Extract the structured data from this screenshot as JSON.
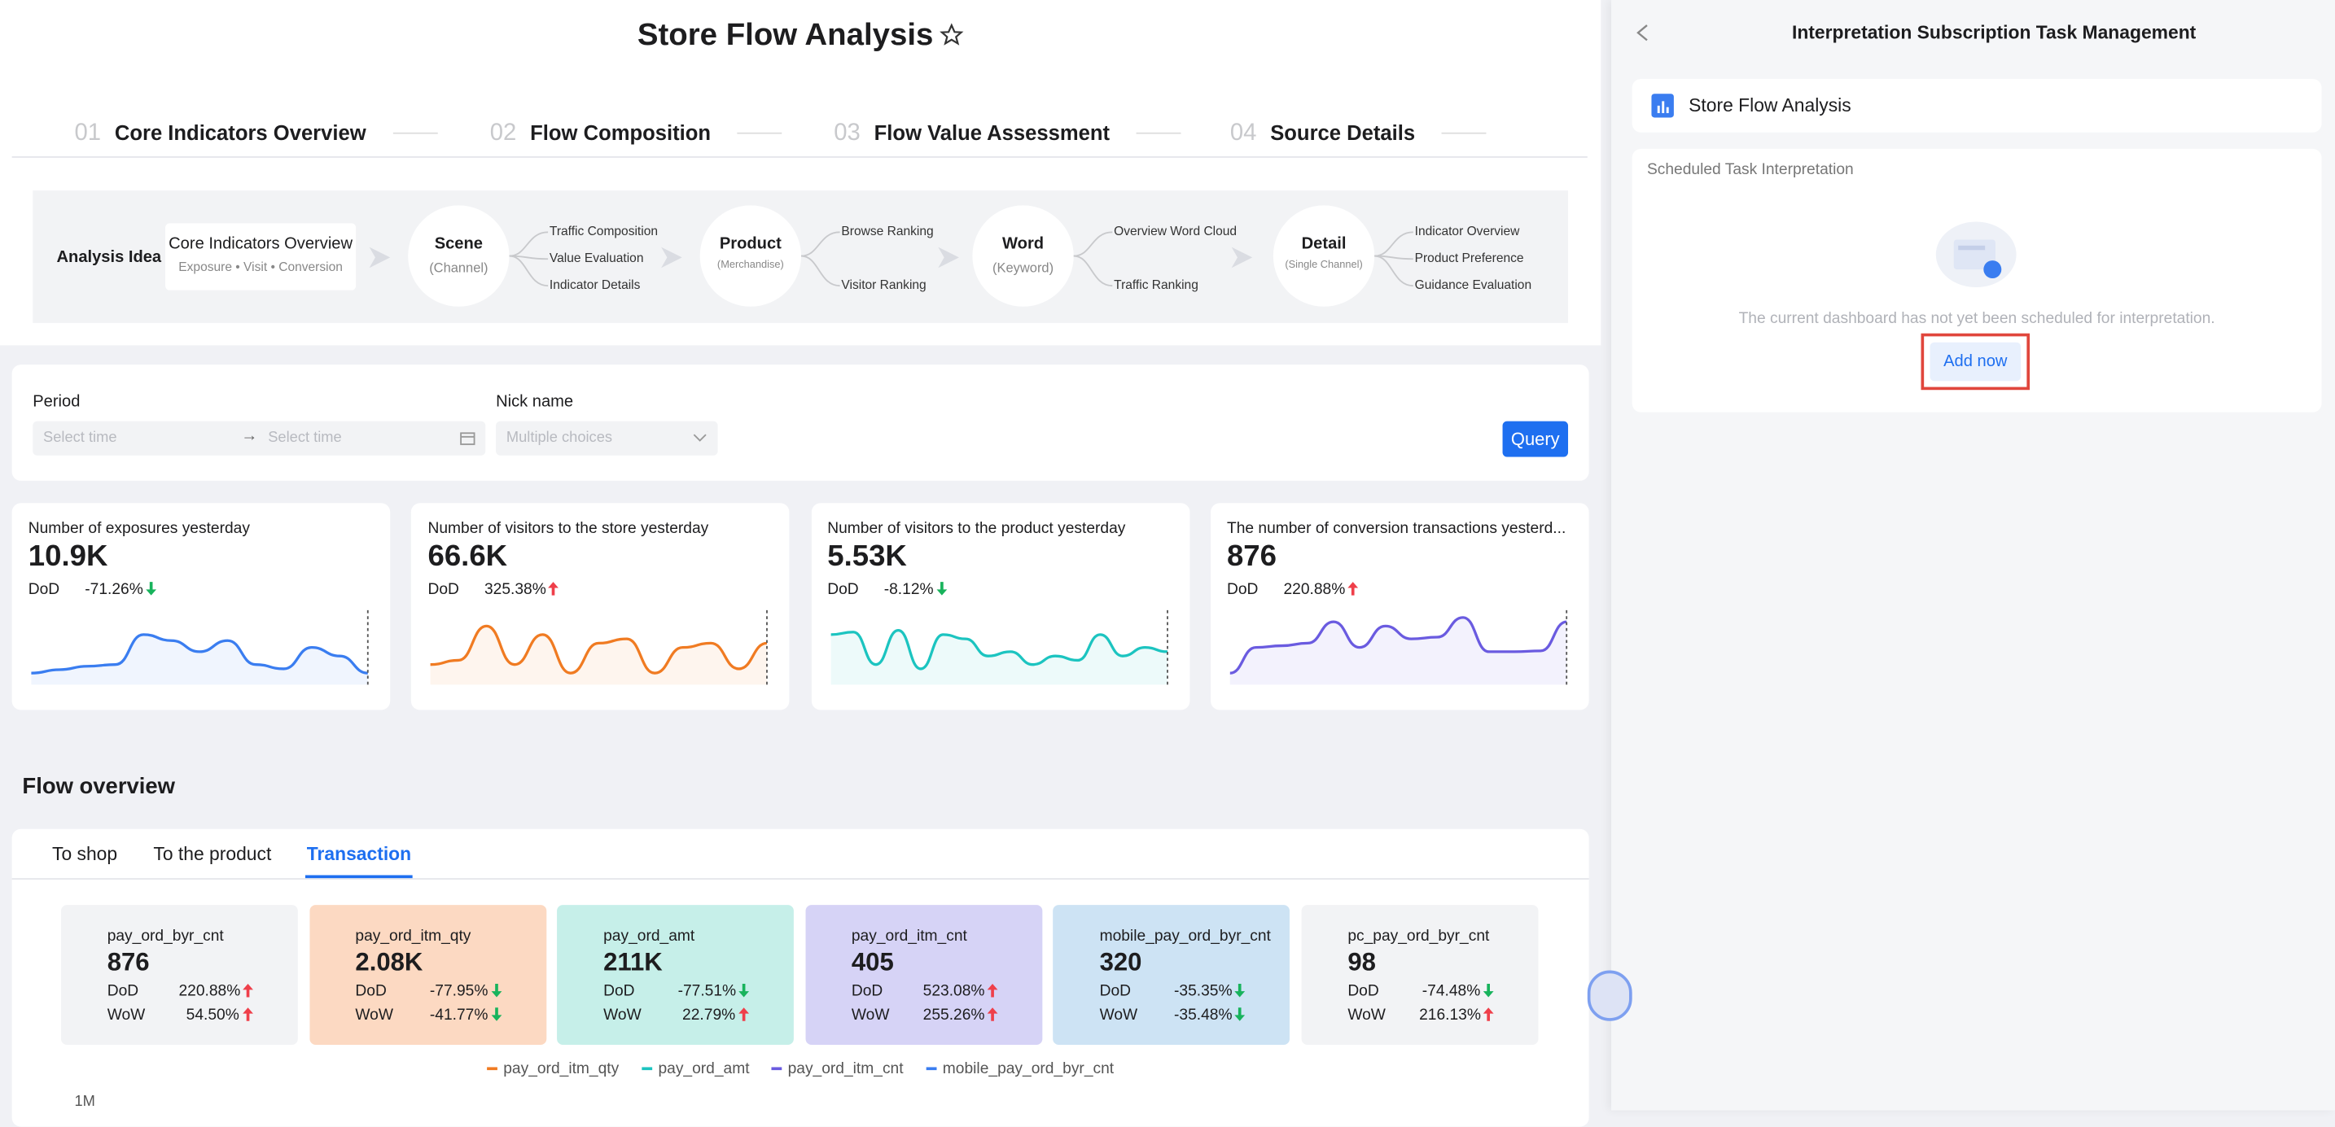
{
  "header": {
    "title": "Store Flow Analysis"
  },
  "steps": [
    {
      "num": "01",
      "label": "Core Indicators Overview"
    },
    {
      "num": "02",
      "label": "Flow Composition"
    },
    {
      "num": "03",
      "label": "Flow Value Assessment"
    },
    {
      "num": "04",
      "label": "Source Details"
    }
  ],
  "analysis": {
    "label": "Analysis Idea",
    "overview": {
      "title": "Core Indicators Overview",
      "sub": "Exposure • Visit • Conversion"
    },
    "nodes": [
      {
        "title": "Scene",
        "sub": "(Channel)",
        "items": [
          "Traffic Composition",
          "Value Evaluation",
          "Indicator Details"
        ]
      },
      {
        "title": "Product",
        "sub": "(Merchandise)",
        "items": [
          "Browse Ranking",
          "Visitor Ranking"
        ]
      },
      {
        "title": "Word",
        "sub": "(Keyword)",
        "items": [
          "Overview Word Cloud",
          "Traffic Ranking"
        ]
      },
      {
        "title": "Detail",
        "sub": "(Single Channel)",
        "items": [
          "Indicator Overview",
          "Product Preference",
          "Guidance Evaluation"
        ]
      }
    ]
  },
  "filters": {
    "period": {
      "label": "Period",
      "start": "Select time",
      "end": "Select time"
    },
    "nick": {
      "label": "Nick name",
      "placeholder": "Multiple choices"
    },
    "query": "Query"
  },
  "kpis": [
    {
      "title": "Number of exposures yesterday",
      "value": "10.9K",
      "dod_label": "DoD",
      "dod": "-71.26%",
      "color": "#3a7df0",
      "trend": [
        10,
        14,
        18,
        20,
        55,
        48,
        35,
        48,
        20,
        15,
        40,
        30,
        10
      ]
    },
    {
      "title": "Number of visitors to the store yesterday",
      "value": "66.6K",
      "dod_label": "DoD",
      "dod": "325.38%",
      "color": "#f07b22",
      "trend": [
        20,
        25,
        65,
        20,
        55,
        10,
        45,
        50,
        10,
        40,
        45,
        15,
        45
      ]
    },
    {
      "title": "Number of visitors to the product yesterday",
      "value": "5.53K",
      "dod_label": "DoD",
      "dod": "-8.12%",
      "color": "#1cc4c0",
      "trend": [
        55,
        58,
        20,
        60,
        15,
        55,
        50,
        30,
        35,
        20,
        30,
        25,
        55,
        30,
        40,
        35
      ]
    },
    {
      "title": "The number of conversion transactions yesterd...",
      "value": "876",
      "dod_label": "DoD",
      "dod": "220.88%",
      "color": "#6a5be0",
      "trend": [
        10,
        40,
        42,
        45,
        70,
        40,
        65,
        50,
        52,
        75,
        35,
        35,
        36,
        70
      ]
    }
  ],
  "flow": {
    "title": "Flow overview",
    "tabs": [
      "To shop",
      "To the product",
      "Transaction"
    ],
    "active_tab": 2,
    "dod_label": "DoD",
    "wow_label": "WoW",
    "cards": [
      {
        "name": "pay_ord_byr_cnt",
        "value": "876",
        "dod": "220.88%",
        "wow": "54.50%",
        "color": "#f2f3f5"
      },
      {
        "name": "pay_ord_itm_qty",
        "value": "2.08K",
        "dod": "-77.95%",
        "wow": "-41.77%",
        "color": "#fcd9c2"
      },
      {
        "name": "pay_ord_amt",
        "value": "211K",
        "dod": "-77.51%",
        "wow": "22.79%",
        "color": "#c6efe9"
      },
      {
        "name": "pay_ord_itm_cnt",
        "value": "405",
        "dod": "523.08%",
        "wow": "255.26%",
        "color": "#d6d3f6"
      },
      {
        "name": "mobile_pay_ord_byr_cnt",
        "value": "320",
        "dod": "-35.35%",
        "wow": "-35.48%",
        "color": "#cde3f4"
      },
      {
        "name": "pc_pay_ord_byr_cnt",
        "value": "98",
        "dod": "-74.48%",
        "wow": "216.13%",
        "color": "#f2f3f5"
      }
    ],
    "legend": [
      {
        "name": "pay_ord_itm_qty",
        "color": "#f07b22"
      },
      {
        "name": "pay_ord_amt",
        "color": "#1cc4c0"
      },
      {
        "name": "pay_ord_itm_cnt",
        "color": "#6a5be0"
      },
      {
        "name": "mobile_pay_ord_byr_cnt",
        "color": "#3a7df0"
      }
    ],
    "axis_label": "1M"
  },
  "panel": {
    "title": "Interpretation Subscription Task Management",
    "dashboard": "Store Flow Analysis",
    "section": "Scheduled Task Interpretation",
    "empty": "The current dashboard has not yet been scheduled for interpretation.",
    "button": "Add now"
  }
}
